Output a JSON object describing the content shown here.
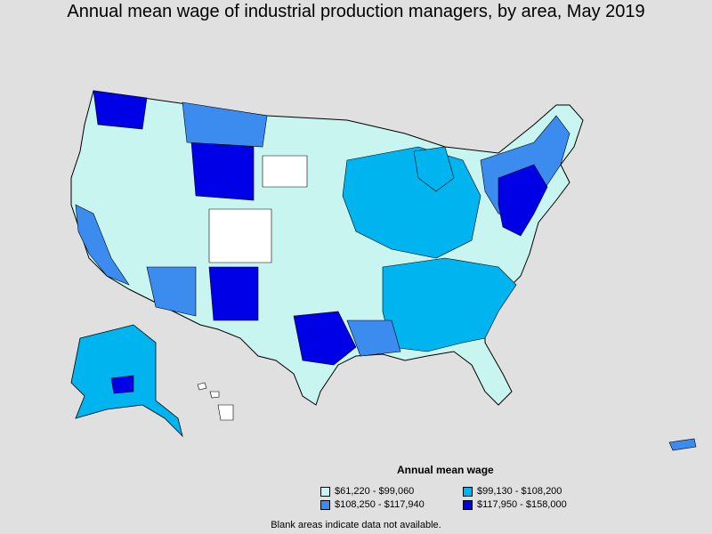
{
  "title": "Annual mean wage of industrial production managers, by area, May 2019",
  "legend": {
    "title": "Annual mean wage",
    "items": [
      {
        "label": "$61,220 - $99,060",
        "color": "#c8f5f0"
      },
      {
        "label": "$99,130 - $108,200",
        "color": "#00b4f0"
      },
      {
        "label": "$108,250 - $117,940",
        "color": "#3c8cf0"
      },
      {
        "label": "$117,950 - $158,000",
        "color": "#0000e6"
      }
    ]
  },
  "note": "Blank areas indicate data not available.",
  "colors": {
    "background": "#e0e0e0",
    "no_data": "#ffffff",
    "border": "#000000"
  }
}
